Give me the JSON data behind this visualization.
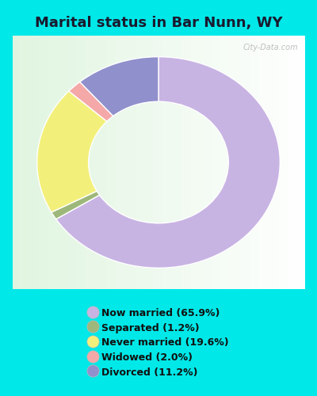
{
  "title": "Marital status in Bar Nunn, WY",
  "slices": [
    65.9,
    1.2,
    19.6,
    2.0,
    11.2
  ],
  "labels": [
    "Now married (65.9%)",
    "Separated (1.2%)",
    "Never married (19.6%)",
    "Widowed (2.0%)",
    "Divorced (11.2%)"
  ],
  "colors": [
    "#c8b4e3",
    "#9db87a",
    "#f2f07a",
    "#f4a8a8",
    "#9090cc"
  ],
  "legend_colors": [
    "#c8b4e3",
    "#9db87a",
    "#f2f07a",
    "#f4a8a8",
    "#9090cc"
  ],
  "bg_cyan": "#00e8e8",
  "bg_chart": "#e8f5e8",
  "title_fontsize": 13,
  "watermark": "City-Data.com"
}
